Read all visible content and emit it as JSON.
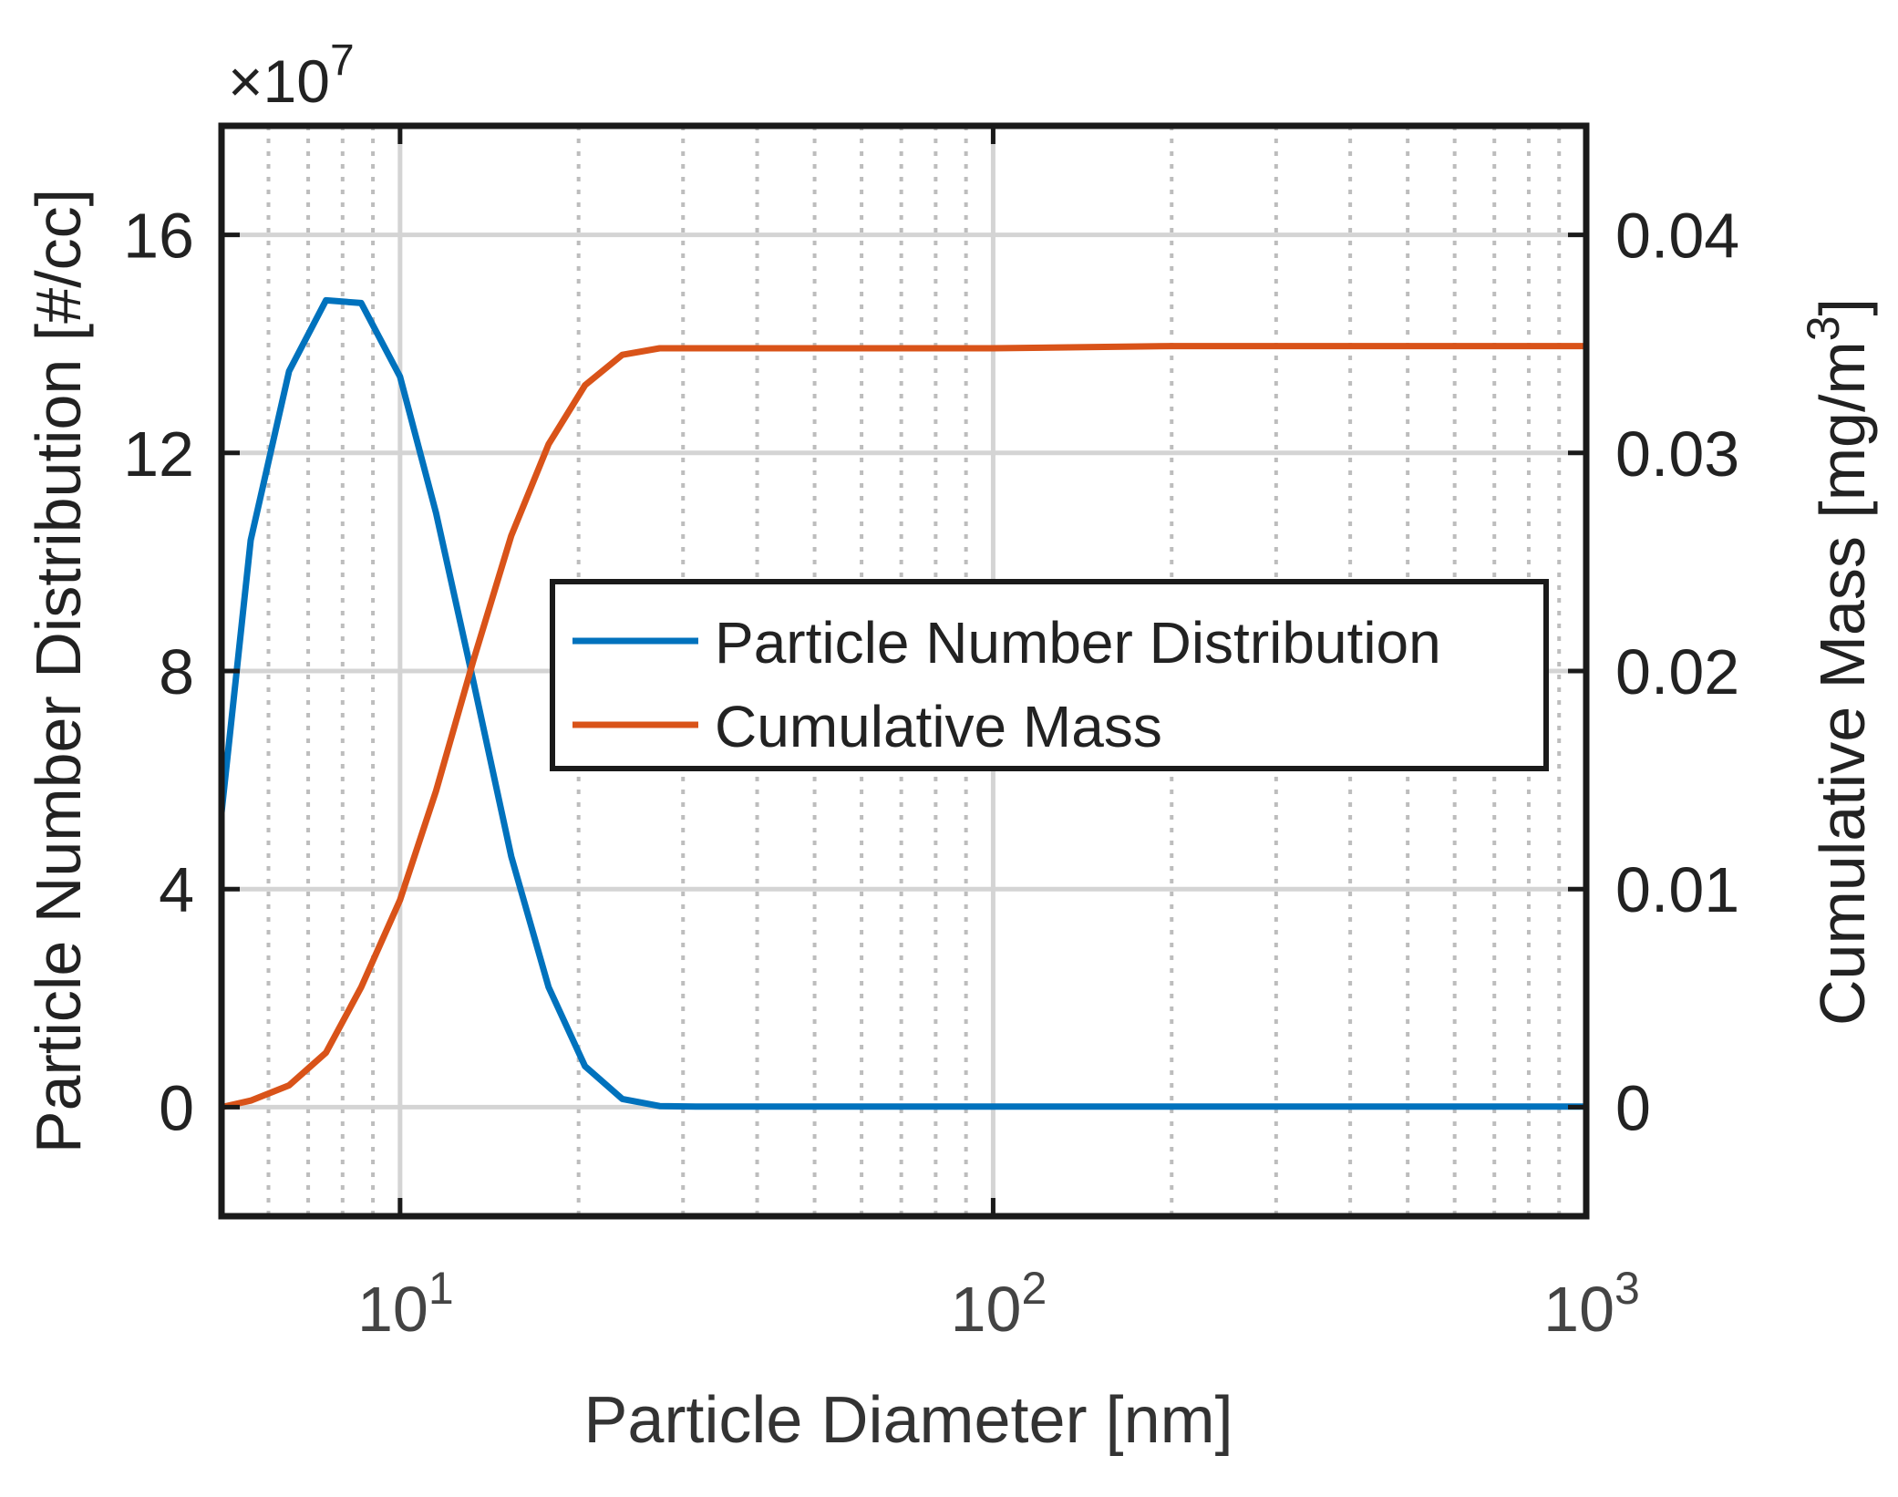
{
  "chart_data": {
    "type": "line",
    "xlabel": "Particle Diameter [nm]",
    "ylabel_left": "Particle Number Distribution [#/cc]",
    "ylabel_right_base": "Cumulative Mass [mg/m",
    "ylabel_right_sup": "3",
    "ylabel_right_close": "]",
    "x_scale": "log",
    "xlim": [
      5,
      1000
    ],
    "ylim_left": [
      -2,
      18
    ],
    "ylim_right": [
      -0.005,
      0.045
    ],
    "left_multiplier_prefix": "×10",
    "left_multiplier_exp": "7",
    "x_ticks": [
      {
        "value": 10,
        "base": "10",
        "exp": "1"
      },
      {
        "value": 100,
        "base": "10",
        "exp": "2"
      },
      {
        "value": 1000,
        "base": "10",
        "exp": "3"
      }
    ],
    "left_ticks": [
      {
        "value": 0,
        "label": "0"
      },
      {
        "value": 4,
        "label": "4"
      },
      {
        "value": 8,
        "label": "8"
      },
      {
        "value": 12,
        "label": "12"
      },
      {
        "value": 16,
        "label": "16"
      }
    ],
    "right_ticks": [
      {
        "value": 0,
        "label": "0"
      },
      {
        "value": 0.01,
        "label": "0.01"
      },
      {
        "value": 0.02,
        "label": "0.02"
      },
      {
        "value": 0.03,
        "label": "0.03"
      },
      {
        "value": 0.04,
        "label": "0.04"
      }
    ],
    "grid": true,
    "legend_position": "center-right",
    "series": [
      {
        "name": "Particle Number Distribution",
        "axis": "left",
        "color": "#0072BD",
        "x": [
          5,
          5.6,
          6.5,
          7.5,
          8.6,
          10,
          11.5,
          13.3,
          15.4,
          17.8,
          20.5,
          23.7,
          27.4,
          31.6,
          50,
          100,
          200,
          500,
          1000
        ],
        "y": [
          5.4,
          10.4,
          13.5,
          14.8,
          14.75,
          13.4,
          10.9,
          7.8,
          4.6,
          2.2,
          0.75,
          0.15,
          0.02,
          0.01,
          0.01,
          0.01,
          0.01,
          0.01,
          0.01
        ]
      },
      {
        "name": "Cumulative Mass",
        "axis": "right",
        "color": "#D95319",
        "x": [
          5,
          5.6,
          6.5,
          7.5,
          8.6,
          10,
          11.5,
          13.3,
          15.4,
          17.8,
          20.5,
          23.7,
          27.4,
          31.6,
          50,
          100,
          200,
          500,
          1000
        ],
        "y": [
          0.0,
          0.0003,
          0.001,
          0.0025,
          0.0055,
          0.0095,
          0.0145,
          0.0205,
          0.0262,
          0.0304,
          0.0331,
          0.0345,
          0.0348,
          0.0348,
          0.0348,
          0.0348,
          0.0349,
          0.0349,
          0.0349
        ]
      }
    ]
  }
}
